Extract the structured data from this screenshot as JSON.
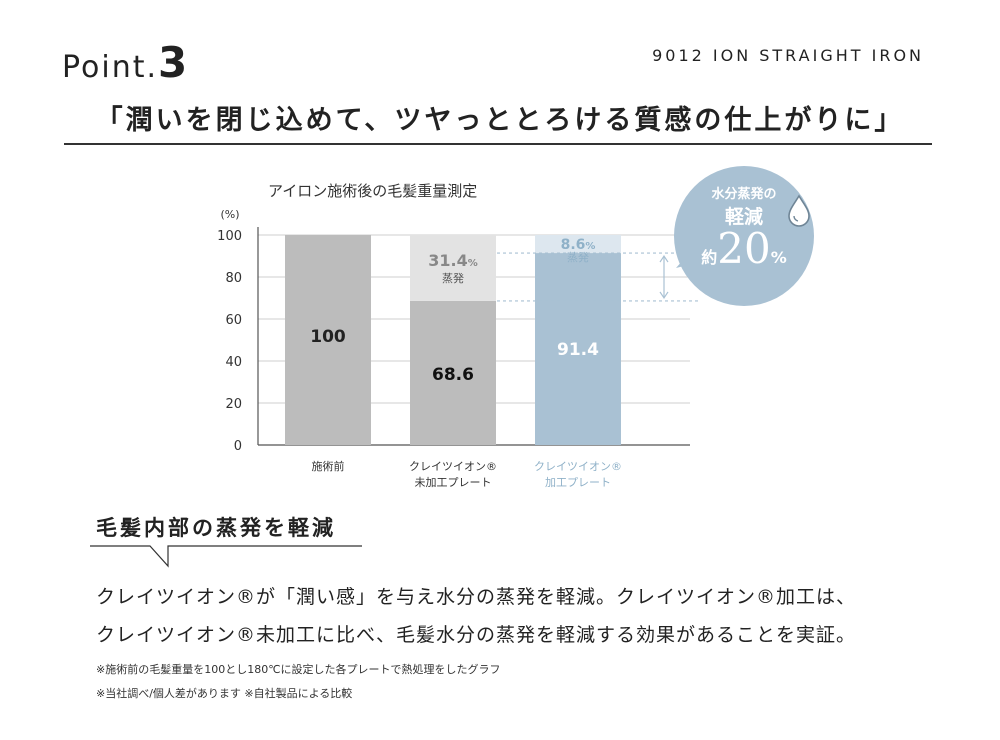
{
  "header": {
    "point_label": "Point.",
    "point_number": "3",
    "product_name": "9012 ION STRAIGHT IRON",
    "headline": "「潤いを閉じ込めて、ツヤっととろける質感の仕上がりに」"
  },
  "chart_data": {
    "type": "bar",
    "title": "アイロン施術後の毛髪重量測定",
    "ylabel": "(%)",
    "ylim": [
      0,
      100
    ],
    "yticks": [
      "100",
      "80",
      "60",
      "40",
      "20",
      "0"
    ],
    "categories": [
      [
        "施術前"
      ],
      [
        "クレイツイオン®",
        "未加工プレート"
      ],
      [
        "クレイツイオン®",
        "加工プレート"
      ]
    ],
    "values": [
      100,
      68.6,
      91.4
    ],
    "value_labels": [
      "100",
      "68.6",
      "91.4"
    ],
    "evaporation": [
      0,
      31.4,
      8.6
    ],
    "evaporation_value_labels": [
      "",
      "31.4",
      "8.6"
    ],
    "evaporation_unit": "%",
    "evaporation_label": "蒸発",
    "colors": {
      "before": "#bcbcbc",
      "untreated": "#bcbcbc",
      "untreated_evap": "#e3e3e3",
      "treated": "#a9c1d3",
      "treated_evap": "#dde7ef",
      "treated_label": "#8fb1c8"
    }
  },
  "badge": {
    "line1": "水分蒸発の",
    "line2": "軽減",
    "prefix": "約",
    "value": "20",
    "suffix": "%",
    "icon": "water-drop-icon"
  },
  "section": {
    "title": "毛髪内部の蒸発を軽減"
  },
  "body": {
    "line1": "クレイツイオン®が「潤い感」を与え水分の蒸発を軽減。クレイツイオン®加工は、",
    "line2": "クレイツイオン®未加工に比べ、毛髪水分の蒸発を軽減する効果があることを実証。"
  },
  "notes": {
    "note1": "※施術前の毛髪重量を100とし180℃に設定した各プレートで熱処理をしたグラフ",
    "note2": "※当社調べ/個人差があります ※自社製品による比較"
  }
}
